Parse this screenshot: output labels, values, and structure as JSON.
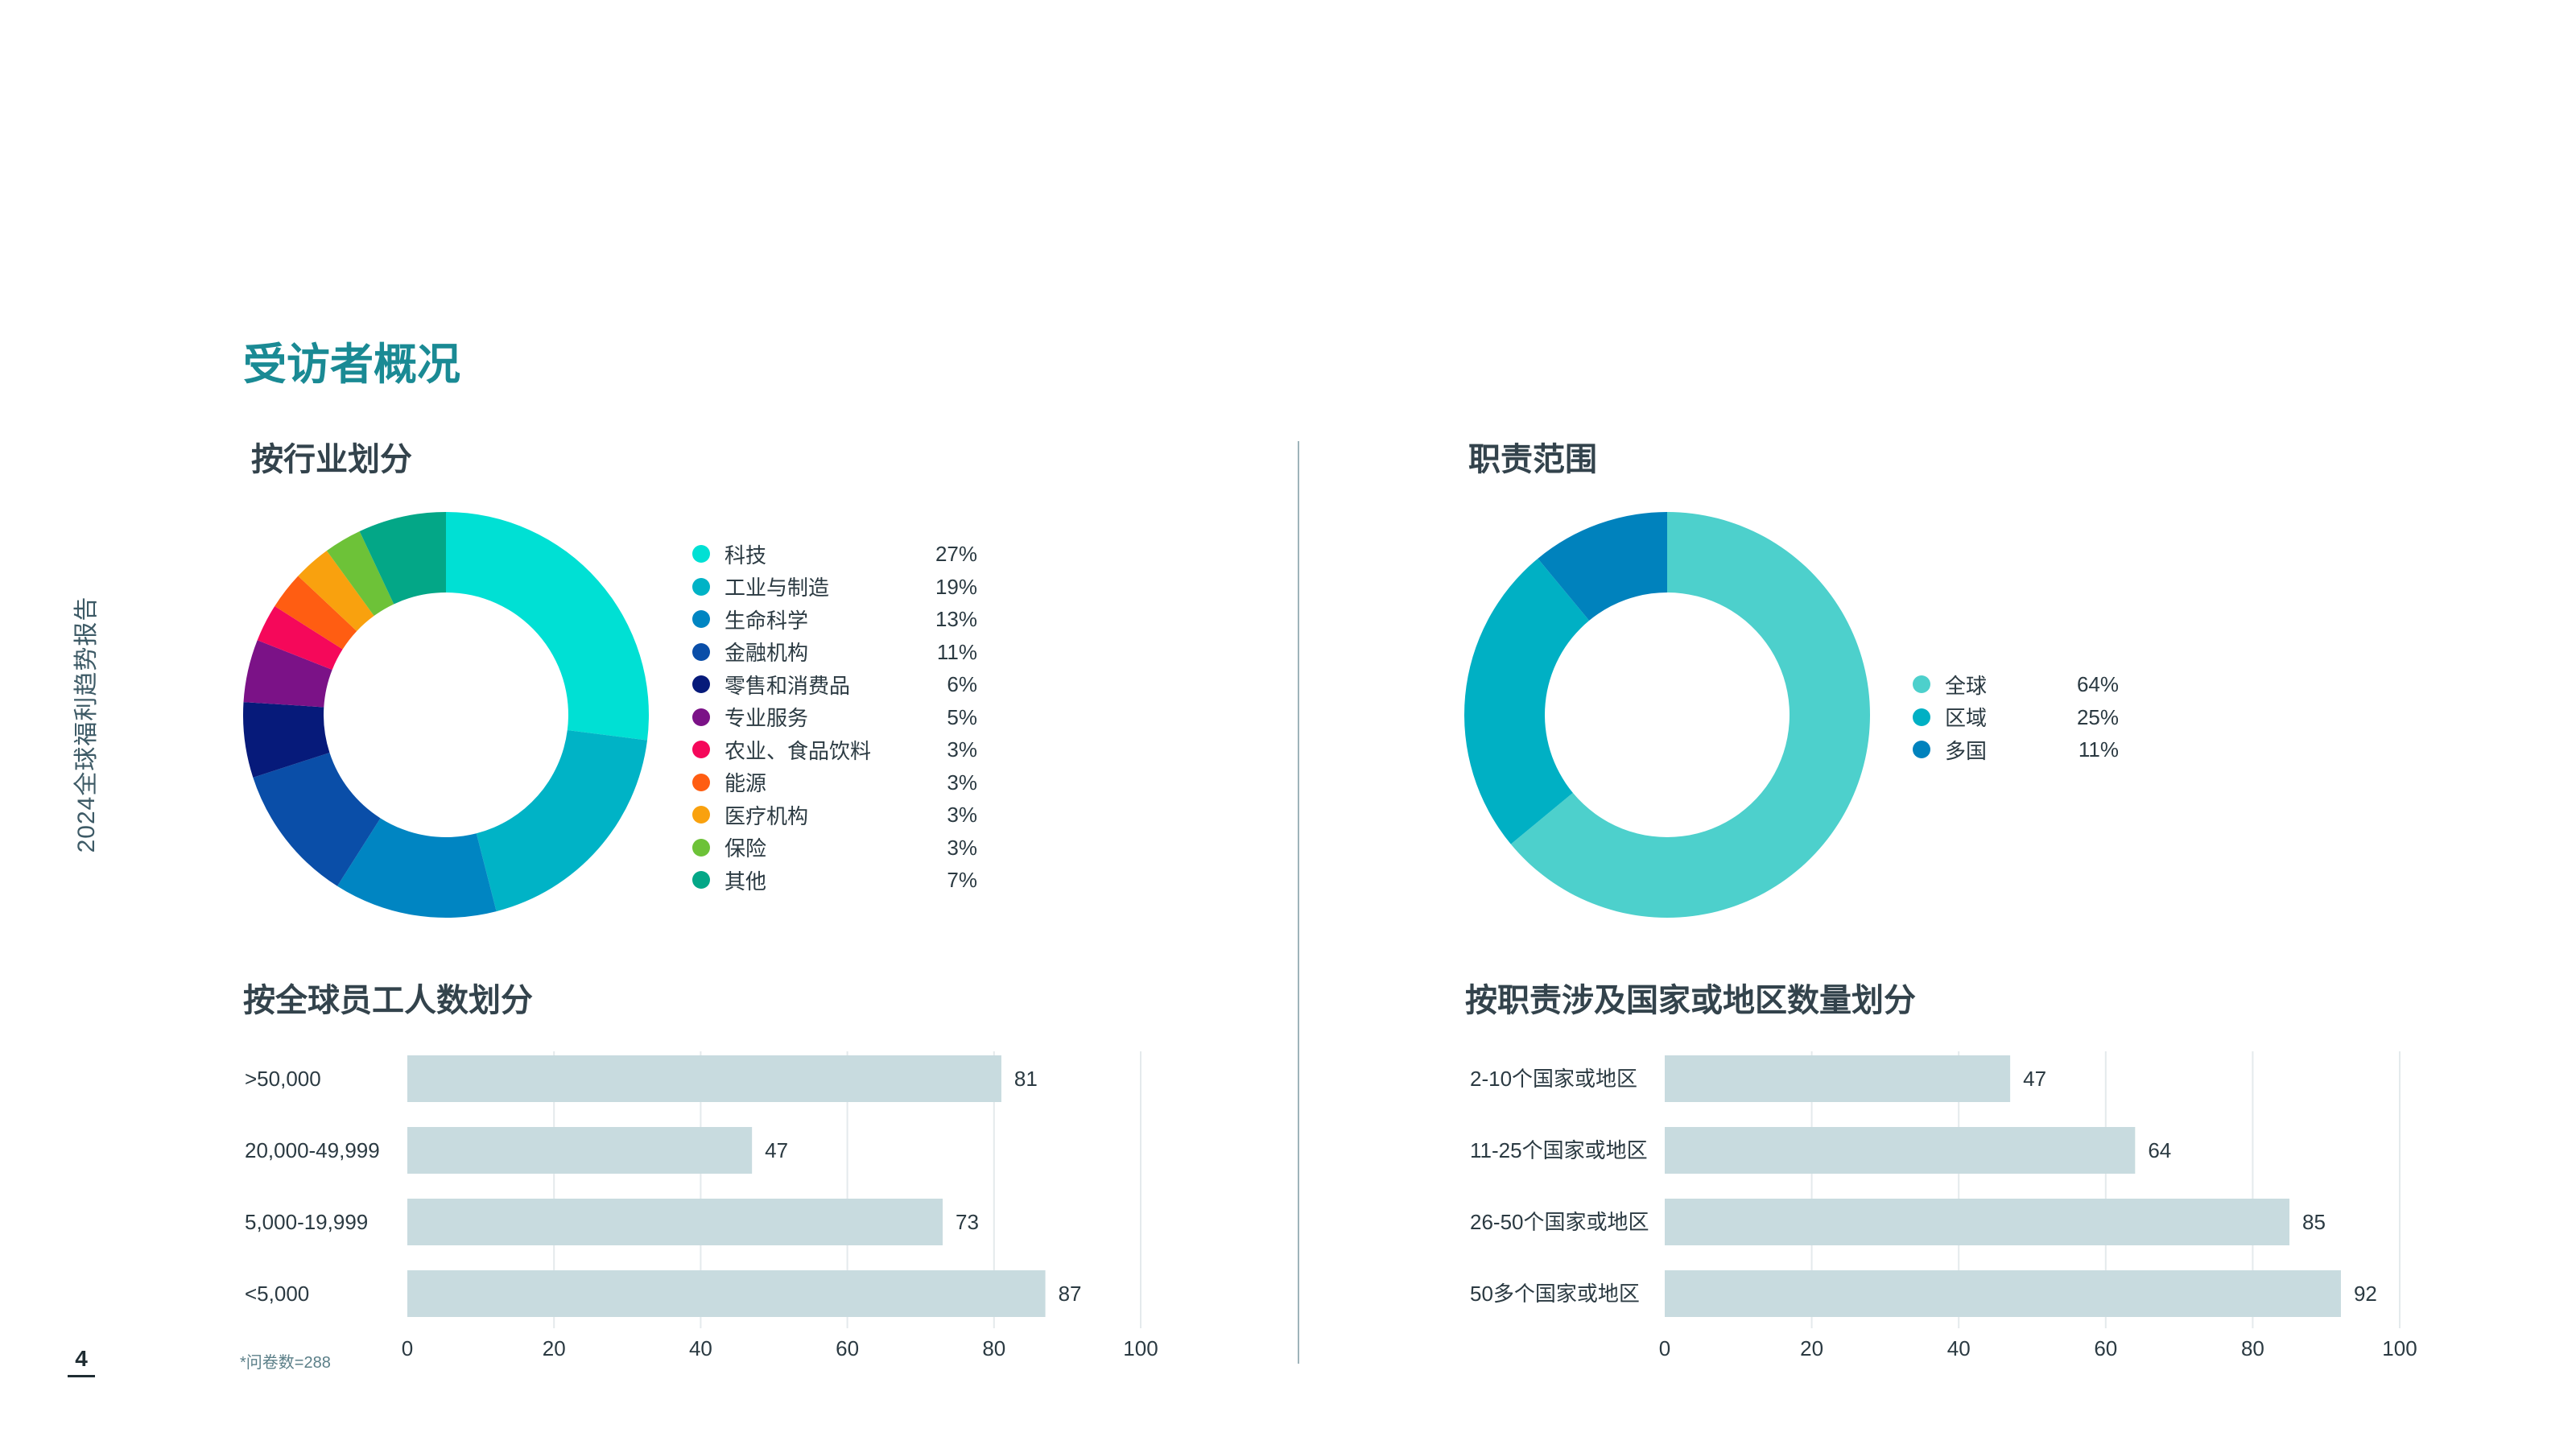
{
  "sidebar_title": "2024全球福利趋势报告",
  "page_number": "4",
  "main_title": "受访者概况",
  "footnote": "*问卷数=288",
  "sections": {
    "industry": "按行业划分",
    "scope": "职责范围",
    "employees": "按全球员工人数划分",
    "countries": "按职责涉及国家或地区数量划分"
  },
  "chart_data": [
    {
      "type": "pie",
      "variant": "donut",
      "categories": [
        "科技",
        "工业与制造",
        "生命科学",
        "金融机构",
        "零售和消费品",
        "专业服务",
        "农业、食品饮料",
        "能源",
        "医疗机构",
        "保险",
        "其他"
      ],
      "values": [
        27,
        19,
        13,
        11,
        6,
        5,
        3,
        3,
        3,
        3,
        7
      ],
      "labels": [
        "27%",
        "19%",
        "13%",
        "11%",
        "6%",
        "5%",
        "3%",
        "3%",
        "3%",
        "3%",
        "7%"
      ],
      "colors": [
        "#00e0d4",
        "#00b3c6",
        "#0085c2",
        "#0a4ea8",
        "#061a7a",
        "#7b1287",
        "#f5085a",
        "#ff5d12",
        "#f9a10e",
        "#6dc238",
        "#03a787"
      ],
      "legend": "right"
    },
    {
      "type": "pie",
      "variant": "donut",
      "categories": [
        "全球",
        "区域",
        "多国"
      ],
      "values": [
        64,
        25,
        11
      ],
      "labels": [
        "64%",
        "25%",
        "11%"
      ],
      "colors": [
        "#4dd0cc",
        "#00b0c4",
        "#0082bd"
      ],
      "legend": "right"
    },
    {
      "type": "bar",
      "orientation": "horizontal",
      "categories": [
        ">50,000",
        "20,000-49,999",
        "5,000-19,999",
        "<5,000"
      ],
      "values": [
        81,
        47,
        73,
        87
      ],
      "xlim": [
        0,
        100
      ],
      "xticks": [
        0,
        20,
        40,
        60,
        80,
        100
      ],
      "bar_color": "#c8dbdf",
      "grid": true
    },
    {
      "type": "bar",
      "orientation": "horizontal",
      "categories": [
        "2-10个国家或地区",
        "11-25个国家或地区",
        "26-50个国家或地区",
        "50多个国家或地区"
      ],
      "values": [
        47,
        64,
        85,
        92
      ],
      "xlim": [
        0,
        100
      ],
      "xticks": [
        0,
        20,
        40,
        60,
        80,
        100
      ],
      "bar_color": "#c8dbdf",
      "grid": true
    }
  ]
}
